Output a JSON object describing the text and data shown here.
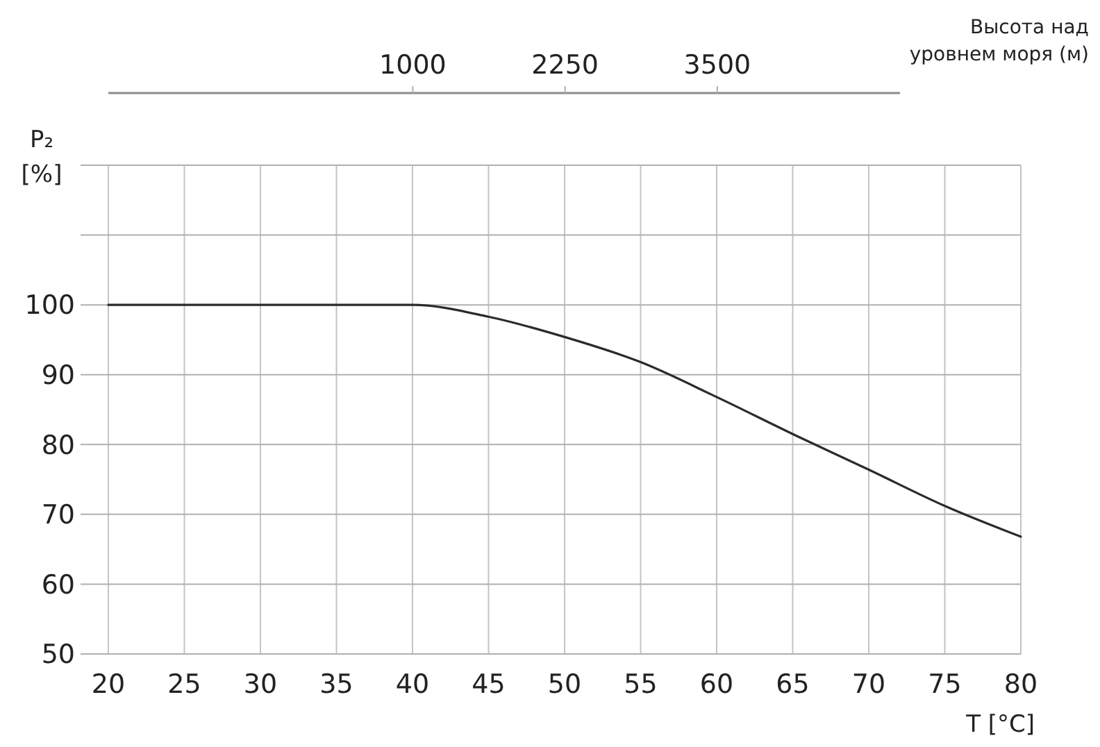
{
  "chart_data": {
    "type": "line",
    "xlabel": "T [°C]",
    "ylabel": "P₂ [%]",
    "x2label": "Высота над уровнем моря (м)",
    "x": [
      20,
      25,
      30,
      35,
      40,
      45,
      50,
      55,
      60,
      65,
      70,
      75,
      80
    ],
    "series": [
      {
        "color": "#2b2b2b",
        "values": [
          100,
          100,
          100,
          100,
          100,
          98.3,
          95.4,
          91.8,
          86.8,
          81.5,
          76.4,
          71.2,
          66.8
        ]
      }
    ],
    "xlim": [
      20,
      80
    ],
    "xticks": [
      20,
      25,
      30,
      35,
      40,
      45,
      50,
      55,
      60,
      65,
      70,
      75,
      80
    ],
    "ylim": [
      50,
      120
    ],
    "yticks": [
      50,
      60,
      70,
      80,
      90,
      100,
      {
        "value": 110,
        "label": null
      },
      {
        "value": 120,
        "label": null
      }
    ],
    "x2lim": [
      -1500,
      5000
    ],
    "x2ticks": [
      1000,
      2250,
      3500
    ],
    "grid": true,
    "marker": "none",
    "line_style": "solid"
  }
}
